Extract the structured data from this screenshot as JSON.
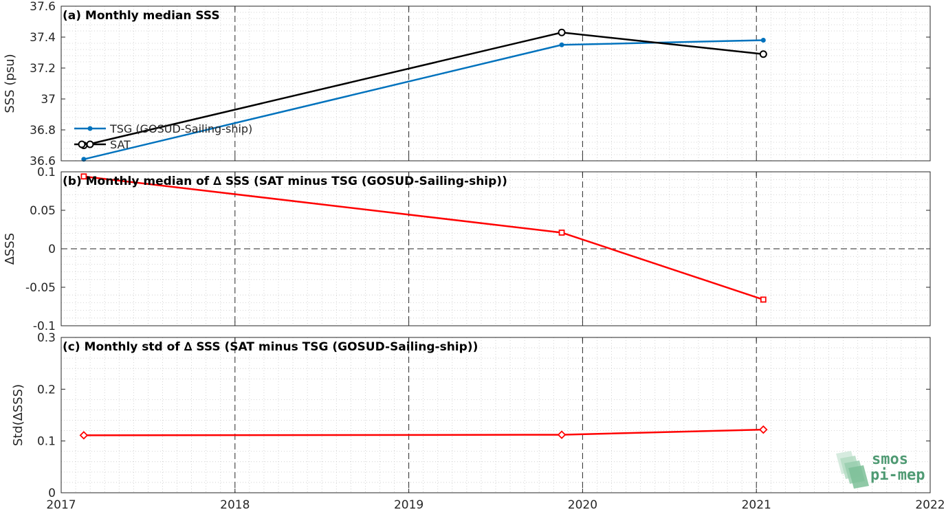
{
  "chart_data": [
    {
      "type": "line",
      "title": "(a) Monthly median SSS",
      "ylabel": "SSS (psu)",
      "xlim": [
        2017,
        2022
      ],
      "ylim": [
        36.6,
        37.6
      ],
      "yticks": [
        "36.6",
        "36.8",
        "37",
        "37.2",
        "37.4",
        "37.6"
      ],
      "ytick_values": [
        36.6,
        36.8,
        37.0,
        37.2,
        37.4,
        37.6
      ],
      "grid": true,
      "legend": "left",
      "series": [
        {
          "name": "TSG (GOSUD-Sailing-ship)",
          "color": "#0072bd",
          "marker": "dot",
          "x": [
            2017.13,
            2019.88,
            2021.04
          ],
          "y": [
            36.61,
            37.35,
            37.38
          ]
        },
        {
          "name": "SAT",
          "color": "#000000",
          "marker": "circle",
          "x": [
            2017.13,
            2019.88,
            2021.04
          ],
          "y": [
            36.7,
            37.43,
            37.29
          ]
        }
      ]
    },
    {
      "type": "line",
      "title": "(b) Monthly median of ∆ SSS (SAT minus TSG (GOSUD-Sailing-ship))",
      "ylabel": "∆SSS",
      "xlim": [
        2017,
        2022
      ],
      "ylim": [
        -0.1,
        0.1
      ],
      "yticks": [
        "-0.1",
        "-0.05",
        "0",
        "0.05",
        "0.1"
      ],
      "ytick_values": [
        -0.1,
        -0.05,
        0,
        0.05,
        0.1
      ],
      "grid": true,
      "zero_line": true,
      "series": [
        {
          "color": "#ff0000",
          "marker": "square",
          "x": [
            2017.13,
            2019.88,
            2021.04
          ],
          "y": [
            0.094,
            0.021,
            -0.066
          ]
        }
      ]
    },
    {
      "type": "line",
      "title": "(c) Monthly std of ∆ SSS (SAT minus TSG (GOSUD-Sailing-ship))",
      "ylabel": "Std(∆SSS)",
      "xlim": [
        2017,
        2022
      ],
      "ylim": [
        0,
        0.3
      ],
      "yticks": [
        "0",
        "0.1",
        "0.2",
        "0.3"
      ],
      "ytick_values": [
        0,
        0.1,
        0.2,
        0.3
      ],
      "xticks": [
        "2017",
        "2018",
        "2019",
        "2020",
        "2021",
        "2022"
      ],
      "xtick_values": [
        2017,
        2018,
        2019,
        2020,
        2021,
        2022
      ],
      "grid": true,
      "series": [
        {
          "color": "#ff0000",
          "marker": "diamond",
          "x": [
            2017.13,
            2019.88,
            2021.04
          ],
          "y": [
            0.111,
            0.112,
            0.122
          ]
        }
      ]
    }
  ],
  "logo": {
    "line1": "smos",
    "line2": "pi-mep"
  }
}
